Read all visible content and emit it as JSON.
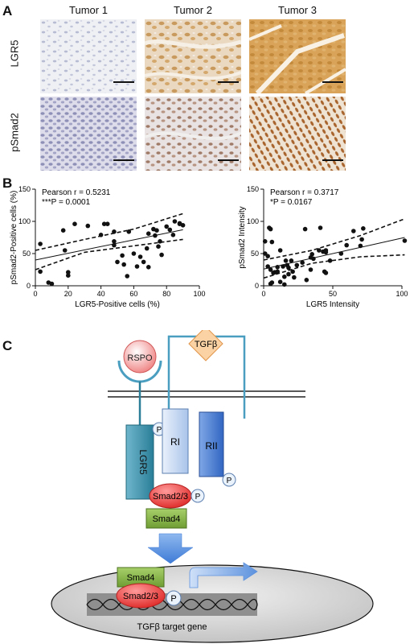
{
  "panel_a": {
    "letter": "A",
    "columns": [
      "Tumor 1",
      "Tumor 2",
      "Tumor 3"
    ],
    "rows": [
      "LGR5",
      "pSmad2"
    ]
  },
  "panel_b": {
    "letter": "B"
  },
  "panel_c": {
    "letter": "C",
    "rspo": "RSPO",
    "tgfb": "TGFβ",
    "lgr5": "LGR5",
    "ri": "RI",
    "rii": "RII",
    "p": "P",
    "smad23": "Smad2/3",
    "smad4": "Smad4",
    "target": "TGFβ target gene"
  },
  "chart_data": [
    {
      "type": "scatter",
      "title": "",
      "xlabel": "LGR5-Positive cells (%)",
      "ylabel": "pSmad2-Positive cells (%)",
      "xlim": [
        0,
        100
      ],
      "ylim": [
        0,
        150
      ],
      "xticks": [
        0,
        20,
        40,
        60,
        80,
        100
      ],
      "yticks": [
        0,
        50,
        100,
        150
      ],
      "annotation_line1": "Pearson r = 0.5231",
      "annotation_line2": "***P = 0.0001",
      "points": [
        [
          3,
          65
        ],
        [
          3,
          22
        ],
        [
          8,
          5
        ],
        [
          10,
          3
        ],
        [
          17,
          86
        ],
        [
          18,
          55
        ],
        [
          20,
          16
        ],
        [
          20,
          21
        ],
        [
          24,
          96
        ],
        [
          32,
          93
        ],
        [
          40,
          79
        ],
        [
          42,
          96
        ],
        [
          44,
          96
        ],
        [
          48,
          84
        ],
        [
          48,
          69
        ],
        [
          48,
          63
        ],
        [
          50,
          37
        ],
        [
          53,
          47
        ],
        [
          54,
          33
        ],
        [
          56,
          15
        ],
        [
          57,
          84
        ],
        [
          60,
          50
        ],
        [
          62,
          30
        ],
        [
          64,
          45
        ],
        [
          66,
          37
        ],
        [
          68,
          58
        ],
        [
          69,
          81
        ],
        [
          69,
          29
        ],
        [
          72,
          88
        ],
        [
          73,
          78
        ],
        [
          74,
          86
        ],
        [
          75,
          61
        ],
        [
          76,
          69
        ],
        [
          77,
          48
        ],
        [
          80,
          92
        ],
        [
          82,
          87
        ],
        [
          84,
          79
        ],
        [
          85,
          100
        ],
        [
          88,
          97
        ],
        [
          88,
          96
        ],
        [
          90,
          94
        ]
      ],
      "fit": {
        "x": [
          0,
          90
        ],
        "y": [
          40,
          87
        ]
      },
      "ci_upper": {
        "x": [
          0,
          30,
          60,
          90
        ],
        "y": [
          55,
          72,
          88,
          112
        ]
      },
      "ci_lower": {
        "x": [
          0,
          30,
          60,
          90
        ],
        "y": [
          25,
          52,
          62,
          72
        ]
      }
    },
    {
      "type": "scatter",
      "title": "",
      "xlabel": "LGR5 Intensity",
      "ylabel": "pSmad2 Intensity",
      "xlim": [
        0,
        100
      ],
      "ylim": [
        0,
        150
      ],
      "xticks": [
        0,
        50,
        100
      ],
      "yticks": [
        0,
        50,
        100,
        150
      ],
      "annotation_line1": "Pearson r = 0.3717",
      "annotation_line2": "*P = 0.0167",
      "points": [
        [
          1,
          69
        ],
        [
          1,
          50
        ],
        [
          3,
          46
        ],
        [
          3,
          30
        ],
        [
          4,
          90
        ],
        [
          5,
          88
        ],
        [
          5,
          25
        ],
        [
          5,
          3
        ],
        [
          6,
          68
        ],
        [
          6,
          5
        ],
        [
          7,
          20
        ],
        [
          8,
          21
        ],
        [
          10,
          22
        ],
        [
          10,
          29
        ],
        [
          12,
          6
        ],
        [
          12,
          55
        ],
        [
          14,
          30
        ],
        [
          15,
          2
        ],
        [
          15,
          14
        ],
        [
          16,
          39
        ],
        [
          17,
          32
        ],
        [
          18,
          28
        ],
        [
          18,
          18
        ],
        [
          20,
          39
        ],
        [
          21,
          22
        ],
        [
          22,
          13
        ],
        [
          24,
          32
        ],
        [
          28,
          36
        ],
        [
          30,
          88
        ],
        [
          31,
          9
        ],
        [
          34,
          25
        ],
        [
          34,
          44
        ],
        [
          35,
          49
        ],
        [
          36,
          42
        ],
        [
          40,
          55
        ],
        [
          41,
          90
        ],
        [
          43,
          53
        ],
        [
          44,
          22
        ],
        [
          45,
          55
        ],
        [
          45,
          20
        ],
        [
          45,
          52
        ],
        [
          48,
          39
        ],
        [
          56,
          50
        ],
        [
          60,
          63
        ],
        [
          65,
          85
        ],
        [
          70,
          62
        ],
        [
          71,
          72
        ],
        [
          72,
          89
        ],
        [
          102,
          70
        ]
      ],
      "fit": {
        "x": [
          0,
          102
        ],
        "y": [
          26,
          75
        ]
      },
      "ci_upper": {
        "x": [
          0,
          35,
          70,
          102
        ],
        "y": [
          40,
          55,
          78,
          104
        ]
      },
      "ci_lower": {
        "x": [
          0,
          35,
          70,
          102
        ],
        "y": [
          12,
          35,
          45,
          48
        ]
      }
    }
  ]
}
